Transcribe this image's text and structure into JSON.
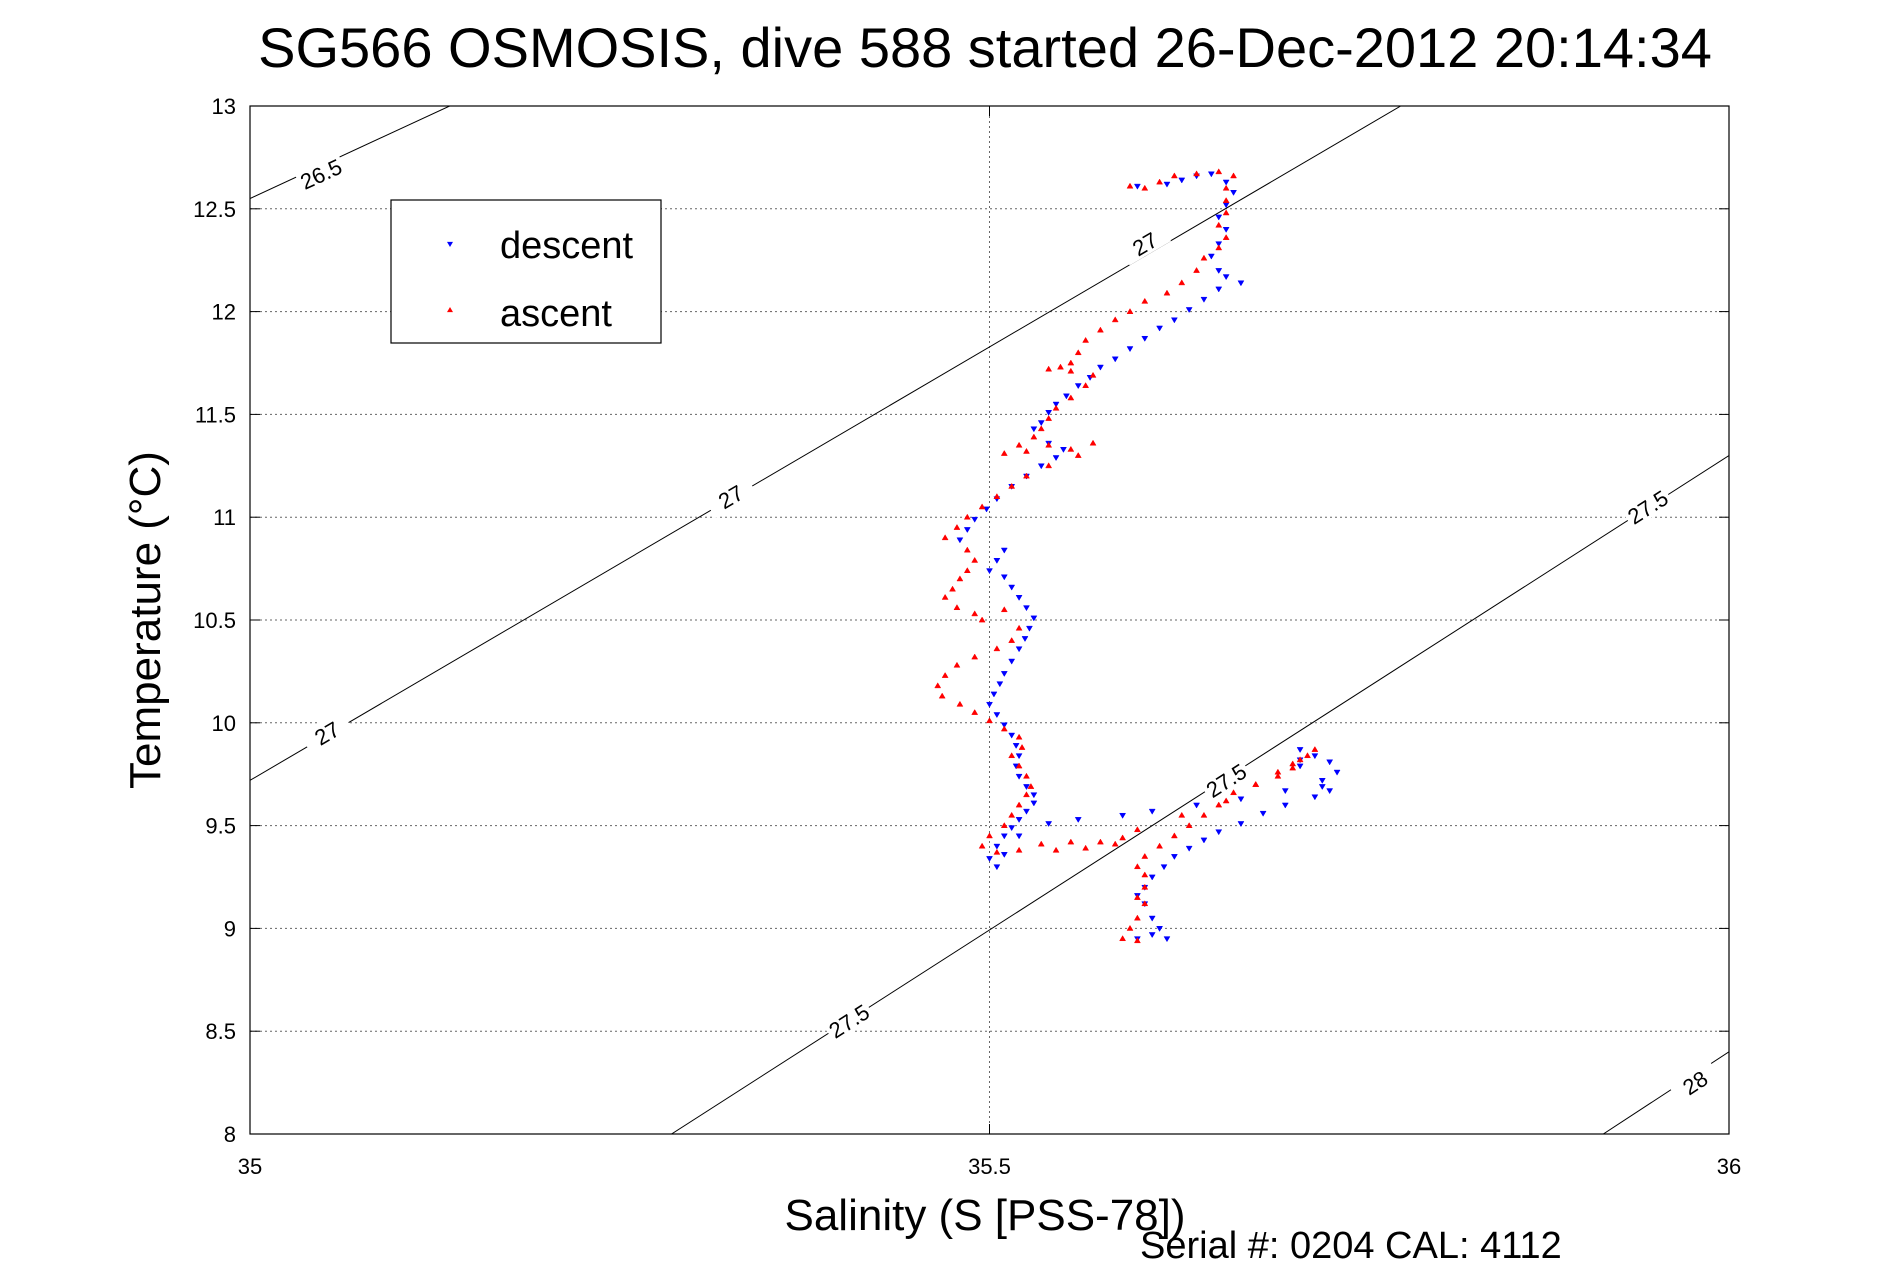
{
  "chart_data": {
    "type": "scatter",
    "title": "SG566 OSMOSIS, dive 588 started 26-Dec-2012 20:14:34",
    "xlabel": "Salinity (S [PSS-78])",
    "ylabel": "Temperature (°C)",
    "xlim": [
      35,
      36
    ],
    "ylim": [
      8,
      13
    ],
    "xticks": [
      35,
      35.5,
      36
    ],
    "xtick_labels": [
      "35",
      "35.5",
      "36"
    ],
    "yticks": [
      8,
      8.5,
      9,
      9.5,
      10,
      10.5,
      11,
      11.5,
      12,
      12.5,
      13
    ],
    "ytick_labels": [
      "8",
      "8.5",
      "9",
      "9.5",
      "10",
      "10.5",
      "11",
      "11.5",
      "12",
      "12.5",
      "13"
    ],
    "grid": true,
    "legend_position": "top-left",
    "footer": "Serial #: 0204  CAL: 4112",
    "isopycnals": [
      {
        "label": "26.5",
        "p1": [
          35.0,
          12.55
        ],
        "p2": [
          35.135,
          13.0
        ],
        "labels": [
          [
            35.048,
            12.67
          ]
        ]
      },
      {
        "label": "27",
        "p1": [
          35.0,
          9.72
        ],
        "p2": [
          35.778,
          13.0
        ],
        "labels": [
          [
            35.052,
            9.95
          ],
          [
            35.325,
            11.1
          ],
          [
            35.605,
            12.33
          ]
        ]
      },
      {
        "label": "27.5",
        "p1": [
          35.285,
          8.0
        ],
        "p2": [
          36.0,
          11.3
        ],
        "labels": [
          [
            35.405,
            8.55
          ],
          [
            35.66,
            9.72
          ],
          [
            35.945,
            11.05
          ]
        ]
      },
      {
        "label": "28",
        "p1": [
          35.915,
          8.0
        ],
        "p2": [
          36.0,
          8.4
        ],
        "labels": [
          [
            35.977,
            8.25
          ]
        ]
      }
    ],
    "series": [
      {
        "name": "descent",
        "color": "#0000ff",
        "marker": "triangle-down",
        "points": [
          [
            35.6,
            12.61
          ],
          [
            35.62,
            12.62
          ],
          [
            35.63,
            12.64
          ],
          [
            35.64,
            12.66
          ],
          [
            35.65,
            12.67
          ],
          [
            35.66,
            12.63
          ],
          [
            35.665,
            12.58
          ],
          [
            35.66,
            12.52
          ],
          [
            35.655,
            12.46
          ],
          [
            35.66,
            12.4
          ],
          [
            35.655,
            12.33
          ],
          [
            35.65,
            12.27
          ],
          [
            35.655,
            12.2
          ],
          [
            35.66,
            12.17
          ],
          [
            35.67,
            12.14
          ],
          [
            35.655,
            12.11
          ],
          [
            35.645,
            12.06
          ],
          [
            35.635,
            12.01
          ],
          [
            35.625,
            11.96
          ],
          [
            35.615,
            11.92
          ],
          [
            35.605,
            11.87
          ],
          [
            35.595,
            11.82
          ],
          [
            35.585,
            11.77
          ],
          [
            35.575,
            11.73
          ],
          [
            35.568,
            11.68
          ],
          [
            35.56,
            11.64
          ],
          [
            35.552,
            11.59
          ],
          [
            35.545,
            11.55
          ],
          [
            35.54,
            11.51
          ],
          [
            35.535,
            11.46
          ],
          [
            35.53,
            11.43
          ],
          [
            35.54,
            11.36
          ],
          [
            35.55,
            11.33
          ],
          [
            35.545,
            11.29
          ],
          [
            35.535,
            11.25
          ],
          [
            35.525,
            11.2
          ],
          [
            35.515,
            11.15
          ],
          [
            35.505,
            11.09
          ],
          [
            35.498,
            11.04
          ],
          [
            35.49,
            10.99
          ],
          [
            35.485,
            10.94
          ],
          [
            35.48,
            10.89
          ],
          [
            35.51,
            10.84
          ],
          [
            35.505,
            10.79
          ],
          [
            35.5,
            10.74
          ],
          [
            35.51,
            10.71
          ],
          [
            35.515,
            10.66
          ],
          [
            35.52,
            10.61
          ],
          [
            35.525,
            10.56
          ],
          [
            35.53,
            10.51
          ],
          [
            35.527,
            10.46
          ],
          [
            35.524,
            10.41
          ],
          [
            35.52,
            10.36
          ],
          [
            35.515,
            10.3
          ],
          [
            35.51,
            10.24
          ],
          [
            35.507,
            10.19
          ],
          [
            35.503,
            10.14
          ],
          [
            35.5,
            10.09
          ],
          [
            35.505,
            10.04
          ],
          [
            35.51,
            9.99
          ],
          [
            35.515,
            9.94
          ],
          [
            35.518,
            9.89
          ],
          [
            35.52,
            9.84
          ],
          [
            35.518,
            9.79
          ],
          [
            35.52,
            9.74
          ],
          [
            35.525,
            9.69
          ],
          [
            35.53,
            9.65
          ],
          [
            35.53,
            9.61
          ],
          [
            35.525,
            9.57
          ],
          [
            35.52,
            9.53
          ],
          [
            35.515,
            9.49
          ],
          [
            35.51,
            9.45
          ],
          [
            35.505,
            9.4
          ],
          [
            35.5,
            9.34
          ],
          [
            35.505,
            9.3
          ],
          [
            35.51,
            9.36
          ],
          [
            35.52,
            9.45
          ],
          [
            35.54,
            9.51
          ],
          [
            35.56,
            9.53
          ],
          [
            35.59,
            9.55
          ],
          [
            35.61,
            9.57
          ],
          [
            35.64,
            9.6
          ],
          [
            35.67,
            9.63
          ],
          [
            35.7,
            9.67
          ],
          [
            35.725,
            9.72
          ],
          [
            35.735,
            9.76
          ],
          [
            35.73,
            9.81
          ],
          [
            35.72,
            9.84
          ],
          [
            35.71,
            9.87
          ],
          [
            35.71,
            9.82
          ],
          [
            35.71,
            9.79
          ],
          [
            35.725,
            9.69
          ],
          [
            35.73,
            9.67
          ],
          [
            35.72,
            9.64
          ],
          [
            35.7,
            9.6
          ],
          [
            35.685,
            9.56
          ],
          [
            35.67,
            9.51
          ],
          [
            35.655,
            9.47
          ],
          [
            35.645,
            9.43
          ],
          [
            35.635,
            9.39
          ],
          [
            35.625,
            9.35
          ],
          [
            35.618,
            9.3
          ],
          [
            35.61,
            9.25
          ],
          [
            35.605,
            9.2
          ],
          [
            35.6,
            9.16
          ],
          [
            35.605,
            9.12
          ],
          [
            35.61,
            9.05
          ],
          [
            35.615,
            9.0
          ],
          [
            35.62,
            8.95
          ],
          [
            35.61,
            8.97
          ],
          [
            35.6,
            8.95
          ]
        ]
      },
      {
        "name": "ascent",
        "color": "#ff0000",
        "marker": "triangle-up",
        "points": [
          [
            35.595,
            12.61
          ],
          [
            35.605,
            12.6
          ],
          [
            35.615,
            12.63
          ],
          [
            35.625,
            12.66
          ],
          [
            35.64,
            12.67
          ],
          [
            35.655,
            12.68
          ],
          [
            35.665,
            12.66
          ],
          [
            35.66,
            12.6
          ],
          [
            35.66,
            12.54
          ],
          [
            35.66,
            12.48
          ],
          [
            35.655,
            12.42
          ],
          [
            35.66,
            12.36
          ],
          [
            35.655,
            12.31
          ],
          [
            35.645,
            12.26
          ],
          [
            35.64,
            12.2
          ],
          [
            35.63,
            12.14
          ],
          [
            35.62,
            12.09
          ],
          [
            35.605,
            12.05
          ],
          [
            35.595,
            12.0
          ],
          [
            35.585,
            11.96
          ],
          [
            35.575,
            11.91
          ],
          [
            35.565,
            11.86
          ],
          [
            35.56,
            11.8
          ],
          [
            35.555,
            11.75
          ],
          [
            35.548,
            11.73
          ],
          [
            35.54,
            11.72
          ],
          [
            35.555,
            11.71
          ],
          [
            35.57,
            11.69
          ],
          [
            35.565,
            11.64
          ],
          [
            35.555,
            11.58
          ],
          [
            35.545,
            11.53
          ],
          [
            35.54,
            11.48
          ],
          [
            35.535,
            11.43
          ],
          [
            35.53,
            11.39
          ],
          [
            35.52,
            11.35
          ],
          [
            35.51,
            11.31
          ],
          [
            35.525,
            11.32
          ],
          [
            35.54,
            11.35
          ],
          [
            35.555,
            11.33
          ],
          [
            35.57,
            11.36
          ],
          [
            35.56,
            11.3
          ],
          [
            35.54,
            11.25
          ],
          [
            35.525,
            11.2
          ],
          [
            35.515,
            11.15
          ],
          [
            35.505,
            11.1
          ],
          [
            35.495,
            11.05
          ],
          [
            35.485,
            11.0
          ],
          [
            35.478,
            10.95
          ],
          [
            35.47,
            10.9
          ],
          [
            35.485,
            10.84
          ],
          [
            35.49,
            10.79
          ],
          [
            35.485,
            10.74
          ],
          [
            35.48,
            10.7
          ],
          [
            35.475,
            10.65
          ],
          [
            35.47,
            10.61
          ],
          [
            35.478,
            10.56
          ],
          [
            35.49,
            10.53
          ],
          [
            35.495,
            10.5
          ],
          [
            35.51,
            10.55
          ],
          [
            35.52,
            10.46
          ],
          [
            35.515,
            10.4
          ],
          [
            35.505,
            10.36
          ],
          [
            35.49,
            10.32
          ],
          [
            35.478,
            10.28
          ],
          [
            35.47,
            10.23
          ],
          [
            35.465,
            10.18
          ],
          [
            35.468,
            10.13
          ],
          [
            35.48,
            10.09
          ],
          [
            35.49,
            10.05
          ],
          [
            35.5,
            10.01
          ],
          [
            35.51,
            9.97
          ],
          [
            35.52,
            9.93
          ],
          [
            35.522,
            9.88
          ],
          [
            35.515,
            9.84
          ],
          [
            35.52,
            9.79
          ],
          [
            35.525,
            9.74
          ],
          [
            35.528,
            9.69
          ],
          [
            35.525,
            9.65
          ],
          [
            35.52,
            9.6
          ],
          [
            35.515,
            9.55
          ],
          [
            35.51,
            9.5
          ],
          [
            35.5,
            9.45
          ],
          [
            35.495,
            9.4
          ],
          [
            35.505,
            9.37
          ],
          [
            35.52,
            9.38
          ],
          [
            35.535,
            9.41
          ],
          [
            35.545,
            9.38
          ],
          [
            35.555,
            9.42
          ],
          [
            35.565,
            9.39
          ],
          [
            35.575,
            9.42
          ],
          [
            35.585,
            9.41
          ],
          [
            35.59,
            9.44
          ],
          [
            35.6,
            9.48
          ],
          [
            35.63,
            9.55
          ],
          [
            35.66,
            9.62
          ],
          [
            35.68,
            9.7
          ],
          [
            35.695,
            9.76
          ],
          [
            35.705,
            9.8
          ],
          [
            35.715,
            9.84
          ],
          [
            35.72,
            9.87
          ],
          [
            35.71,
            9.82
          ],
          [
            35.705,
            9.78
          ],
          [
            35.695,
            9.74
          ],
          [
            35.68,
            9.7
          ],
          [
            35.665,
            9.66
          ],
          [
            35.655,
            9.6
          ],
          [
            35.645,
            9.55
          ],
          [
            35.635,
            9.5
          ],
          [
            35.625,
            9.45
          ],
          [
            35.615,
            9.4
          ],
          [
            35.605,
            9.35
          ],
          [
            35.6,
            9.3
          ],
          [
            35.605,
            9.26
          ],
          [
            35.605,
            9.2
          ],
          [
            35.6,
            9.15
          ],
          [
            35.605,
            9.12
          ],
          [
            35.6,
            9.05
          ],
          [
            35.595,
            9.0
          ],
          [
            35.59,
            8.95
          ],
          [
            35.6,
            8.94
          ]
        ]
      }
    ]
  }
}
